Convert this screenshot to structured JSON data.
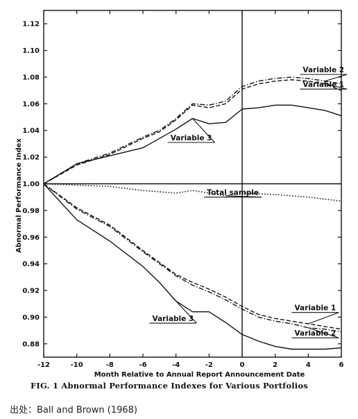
{
  "chart_data": {
    "type": "line",
    "title": "",
    "xlabel": "Month Relative to Annual Report  Announcement Date",
    "ylabel": "Abnormal Performance  Index",
    "xlim": [
      -12,
      6
    ],
    "ylim": [
      0.87,
      1.13
    ],
    "x_ticks": [
      -12,
      -10,
      -8,
      -6,
      -4,
      -2,
      0,
      2,
      4,
      6
    ],
    "y_ticks": [
      "0.88",
      "0.90",
      "0.92",
      "0.94",
      "0.96",
      "0.98",
      "1.00",
      "1.02",
      "1.04",
      "1.06",
      "1.08",
      "1.10",
      "1.12"
    ],
    "reference_lines": [
      {
        "axis": "y",
        "value": 1.0
      },
      {
        "axis": "x",
        "value": 0
      }
    ],
    "grid": false,
    "series": [
      {
        "name": "Variable 2",
        "group": "upper",
        "style": "dash-dot",
        "x": [
          -12,
          -11,
          -10,
          -9,
          -8,
          -7,
          -6,
          -5,
          -4,
          -3,
          -2,
          -1,
          0,
          1,
          2,
          3,
          4,
          5,
          6
        ],
        "y": [
          1.0,
          1.007,
          1.015,
          1.019,
          1.023,
          1.029,
          1.035,
          1.04,
          1.049,
          1.06,
          1.059,
          1.062,
          1.073,
          1.077,
          1.079,
          1.08,
          1.079,
          1.077,
          1.075
        ]
      },
      {
        "name": "Variable 1",
        "group": "upper",
        "style": "dashed",
        "x": [
          -12,
          -11,
          -10,
          -9,
          -8,
          -7,
          -6,
          -5,
          -4,
          -3,
          -2,
          -1,
          0,
          1,
          2,
          3,
          4,
          5,
          6
        ],
        "y": [
          1.0,
          1.007,
          1.014,
          1.018,
          1.022,
          1.028,
          1.034,
          1.039,
          1.048,
          1.059,
          1.057,
          1.06,
          1.071,
          1.075,
          1.077,
          1.078,
          1.077,
          1.075,
          1.07
        ]
      },
      {
        "name": "Variable 3",
        "group": "upper",
        "style": "solid",
        "x": [
          -12,
          -10,
          -8,
          -6,
          -4,
          -3,
          -2,
          -1,
          0,
          1,
          2,
          3,
          4,
          5,
          6
        ],
        "y": [
          1.0,
          1.015,
          1.021,
          1.027,
          1.041,
          1.049,
          1.045,
          1.046,
          1.056,
          1.057,
          1.059,
          1.059,
          1.057,
          1.055,
          1.051
        ]
      },
      {
        "name": "Total sample",
        "group": "middle",
        "style": "dotted",
        "x": [
          -12,
          -10,
          -8,
          -6,
          -4,
          -3,
          -2,
          -1,
          0,
          2,
          4,
          6
        ],
        "y": [
          1.0,
          0.999,
          0.998,
          0.995,
          0.993,
          0.995,
          0.993,
          0.991,
          0.993,
          0.992,
          0.99,
          0.987
        ]
      },
      {
        "name": "Variable 1",
        "group": "lower",
        "style": "dashed",
        "x": [
          -12,
          -10,
          -8,
          -6,
          -4,
          -3,
          -2,
          -1,
          0,
          1,
          2,
          3,
          4,
          5,
          6
        ],
        "y": [
          1.0,
          0.982,
          0.969,
          0.95,
          0.932,
          0.926,
          0.921,
          0.915,
          0.908,
          0.902,
          0.899,
          0.897,
          0.895,
          0.893,
          0.891
        ]
      },
      {
        "name": "Variable 2",
        "group": "lower",
        "style": "dash-dot",
        "x": [
          -12,
          -10,
          -8,
          -6,
          -4,
          -3,
          -2,
          -1,
          0,
          1,
          2,
          3,
          4,
          5,
          6
        ],
        "y": [
          1.0,
          0.981,
          0.968,
          0.949,
          0.931,
          0.924,
          0.919,
          0.913,
          0.906,
          0.9,
          0.897,
          0.895,
          0.892,
          0.891,
          0.889
        ]
      },
      {
        "name": "Variable 3",
        "group": "lower",
        "style": "solid",
        "x": [
          -12,
          -10,
          -8,
          -6,
          -5,
          -4,
          -3,
          -2,
          -1,
          0,
          1,
          2,
          3,
          4,
          5,
          6
        ],
        "y": [
          1.0,
          0.973,
          0.957,
          0.938,
          0.926,
          0.912,
          0.904,
          0.904,
          0.896,
          0.887,
          0.882,
          0.878,
          0.876,
          0.876,
          0.876,
          0.877
        ]
      }
    ],
    "annotations": [
      {
        "text": "Variable 2",
        "series_index": 0,
        "x": 3.5,
        "y": 1.082
      },
      {
        "text": "Variable 1",
        "series_index": 1,
        "x": 3.5,
        "y": 1.071
      },
      {
        "text": "Variable 3",
        "series_index": 2,
        "x": -4.5,
        "y": 1.031
      },
      {
        "text": "Total sample",
        "series_index": 3,
        "x": -2.3,
        "y": 0.99
      },
      {
        "text": "Variable 1",
        "series_index": 4,
        "x": 3.0,
        "y": 0.9035
      },
      {
        "text": "Variable 2",
        "series_index": 5,
        "x": 3.0,
        "y": 0.8845
      },
      {
        "text": "Variable 3",
        "series_index": 6,
        "x": -5.6,
        "y": 0.8955
      }
    ]
  },
  "caption": {
    "text": "FIG. 1 Abnormal Performance Indexes for Various Portfolios"
  },
  "source": {
    "text": "出处：Ball and Brown (1968)"
  }
}
